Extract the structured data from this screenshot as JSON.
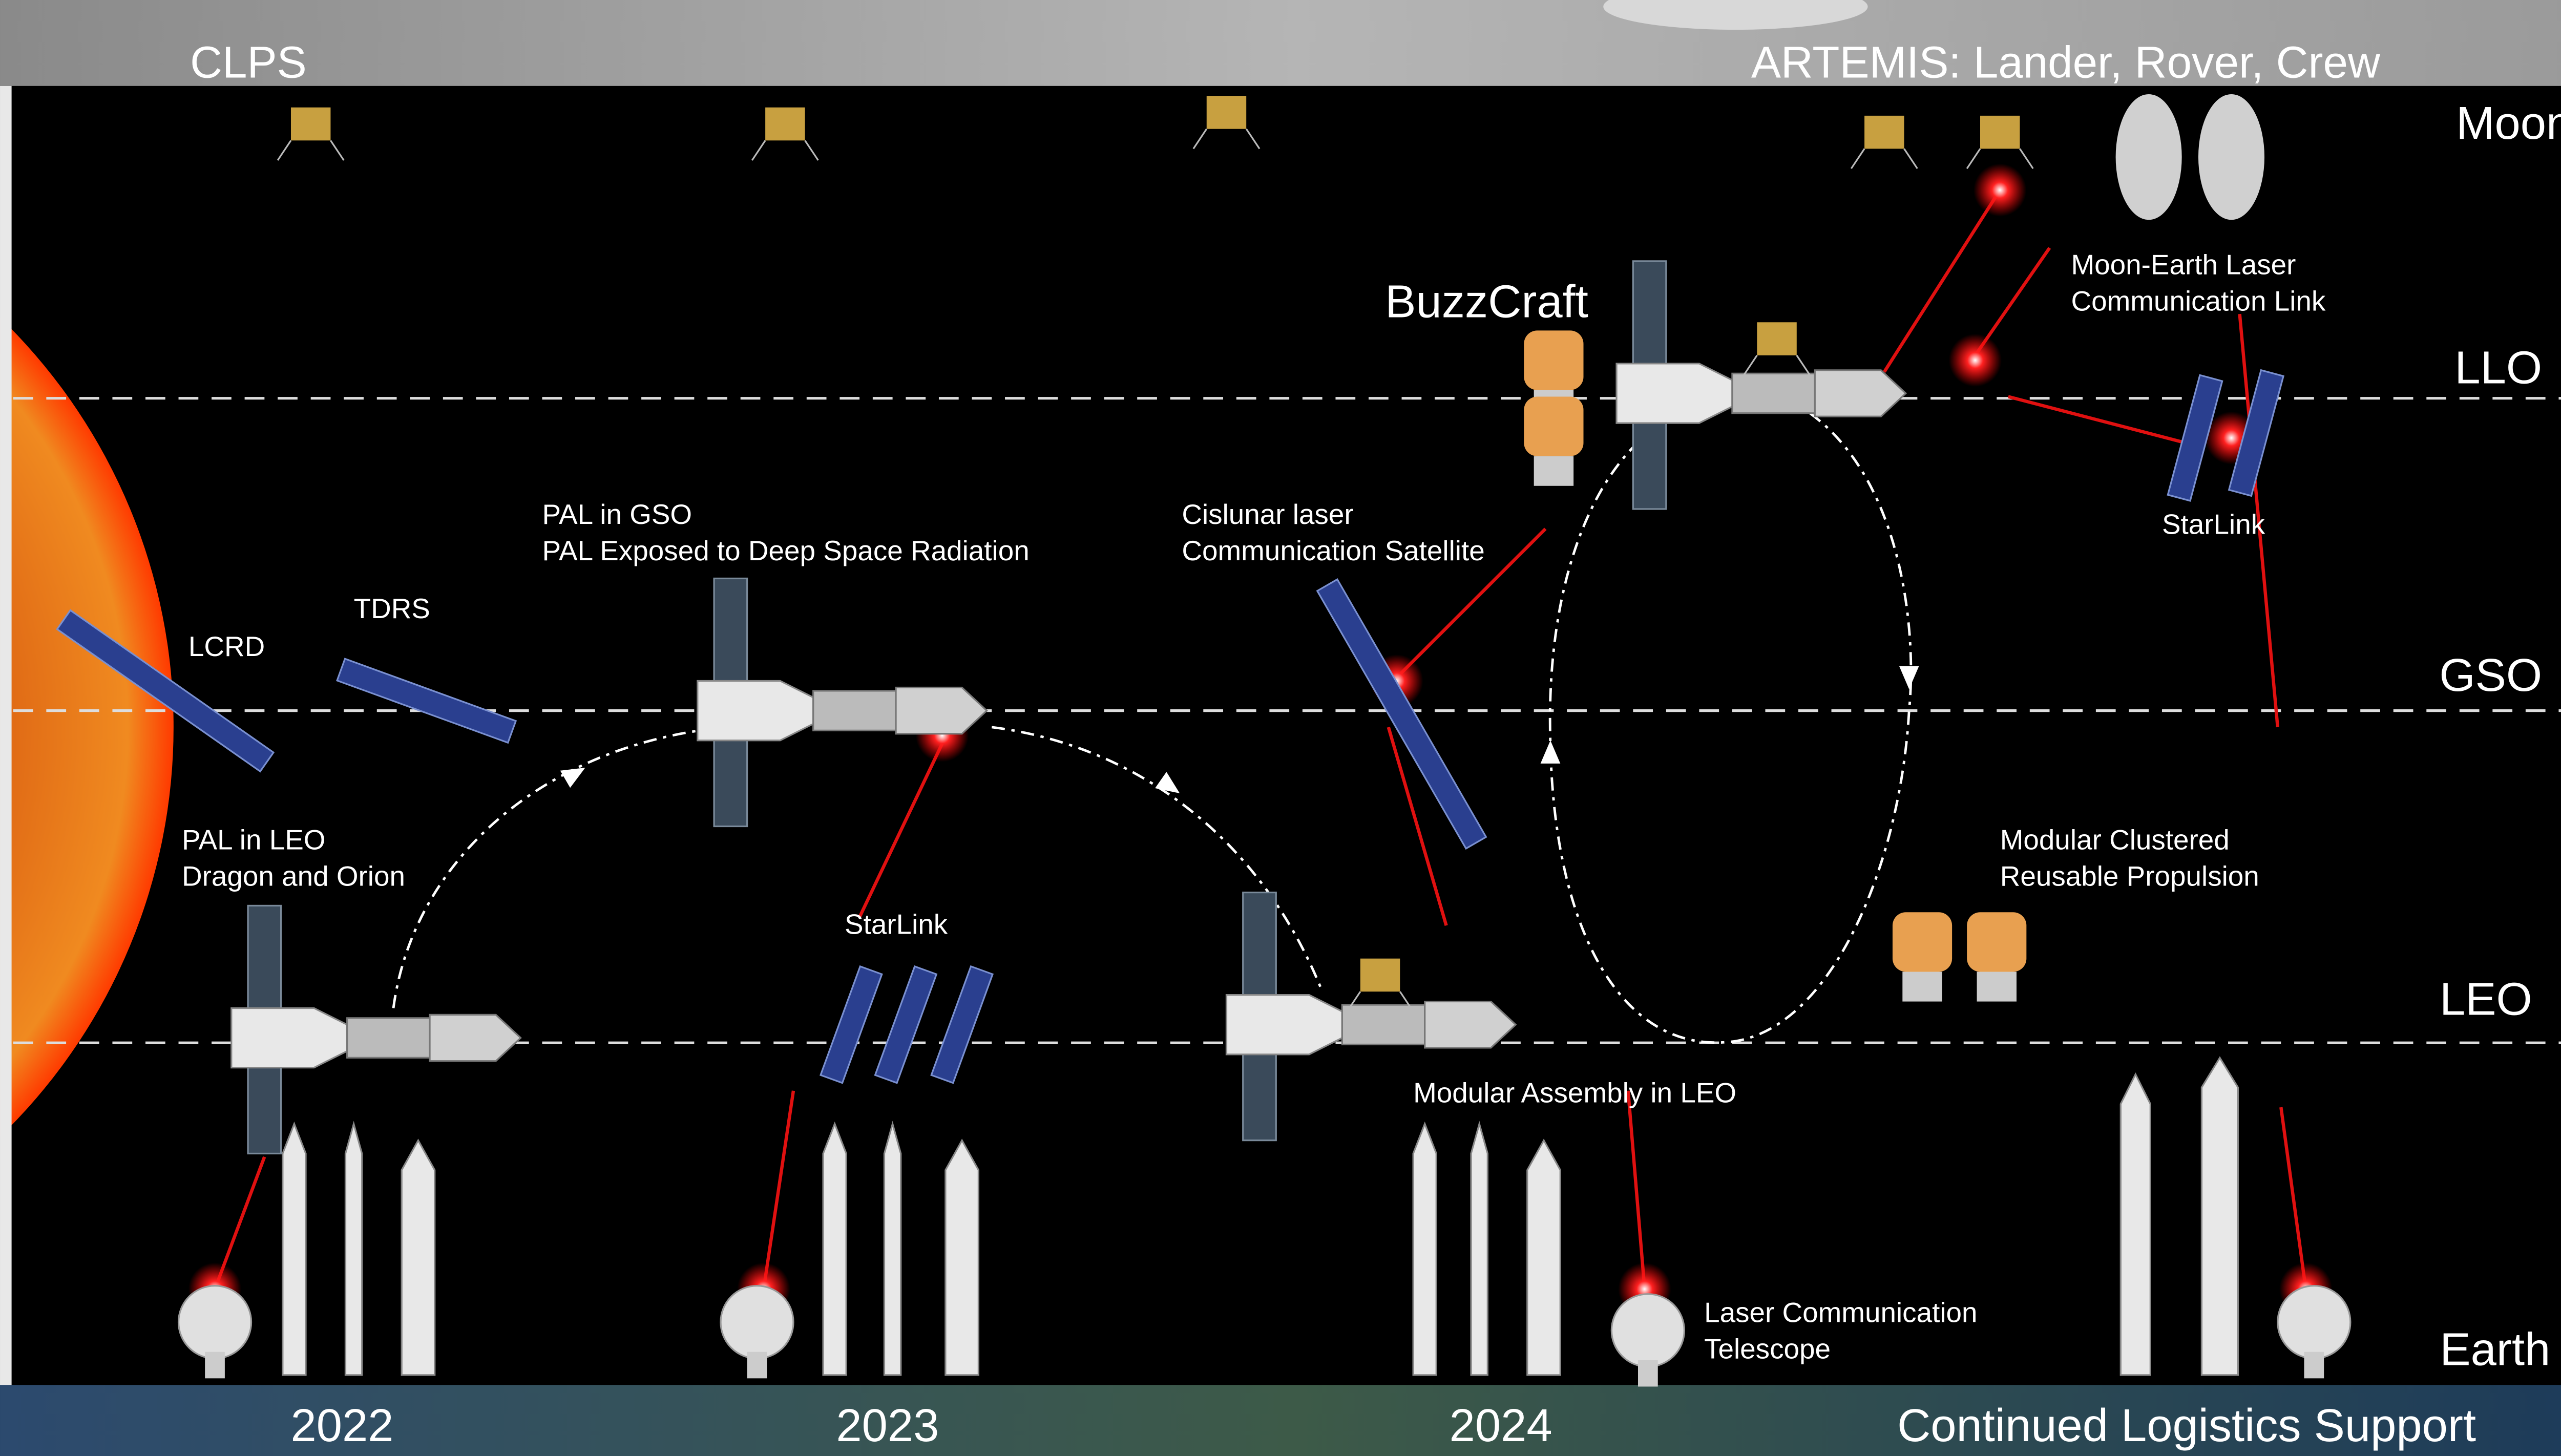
{
  "header": {
    "left": "CLPS",
    "right": "ARTEMIS: Lander, Rover, Crew"
  },
  "orbits": [
    "Moon",
    "LLO",
    "GSO",
    "LEO",
    "Earth"
  ],
  "labels": [
    {
      "lines": [
        "BuzzCraft"
      ]
    },
    {
      "lines": [
        "Moon-Earth Laser",
        "Communication Link"
      ]
    },
    {
      "lines": [
        "StarLink"
      ]
    },
    {
      "lines": [
        "PAL in GSO",
        "PAL Exposed to Deep Space Radiation"
      ]
    },
    {
      "lines": [
        "Cislunar laser",
        "Communication Satellite"
      ]
    },
    {
      "lines": [
        "TDRS"
      ]
    },
    {
      "lines": [
        "LCRD"
      ]
    },
    {
      "lines": [
        "PAL in LEO",
        "Dragon and Orion"
      ]
    },
    {
      "lines": [
        "StarLink"
      ]
    },
    {
      "lines": [
        "Modular Clustered",
        "Reusable Propulsion"
      ]
    },
    {
      "lines": [
        "Modular Assembly in LEO"
      ]
    },
    {
      "lines": [
        "Laser Communication",
        "Telescope"
      ]
    }
  ],
  "footer": {
    "years": [
      "2022",
      "2023",
      "2024"
    ],
    "note": "Continued Logistics Support"
  }
}
